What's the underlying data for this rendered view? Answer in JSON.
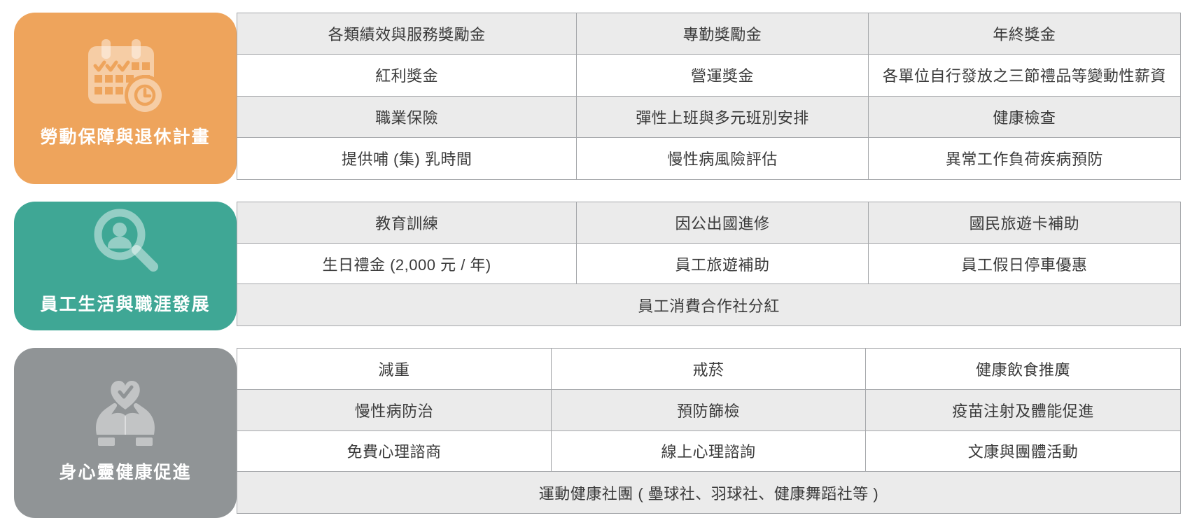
{
  "palette": {
    "orange": "#EEA45C",
    "teal": "#3FA795",
    "gray": "#909496",
    "row_shade": "#EBEBEB",
    "border": "#A5A7AA",
    "cell_text": "#3A3A3A",
    "label_text": "#FFFFFF"
  },
  "sections": [
    {
      "label": "勞動保障與退休計畫",
      "color": "#EEA45C",
      "icon": "calendar-clock-icon",
      "rows": [
        {
          "shaded": true,
          "cells": [
            "各類績效與服務獎勵金",
            "專勤獎勵金",
            "年終獎金"
          ]
        },
        {
          "shaded": false,
          "cells": [
            "紅利獎金",
            "營運獎金",
            "各單位自行發放之三節禮品等變動性薪資"
          ]
        },
        {
          "shaded": true,
          "cells": [
            "職業保險",
            "彈性上班與多元班別安排",
            "健康檢查"
          ]
        },
        {
          "shaded": false,
          "cells": [
            "提供哺 (集) 乳時間",
            "慢性病風險評估",
            "異常工作負荷疾病預防"
          ]
        }
      ]
    },
    {
      "label": "員工生活與職涯發展",
      "color": "#3FA795",
      "icon": "person-search-icon",
      "rows": [
        {
          "shaded": true,
          "cells": [
            "教育訓練",
            "因公出國進修",
            "國民旅遊卡補助"
          ]
        },
        {
          "shaded": false,
          "cells": [
            "生日禮金 (2,000 元 / 年)",
            "員工旅遊補助",
            "員工假日停車優惠"
          ]
        },
        {
          "shaded": true,
          "cells": [
            "員工消費合作社分紅"
          ]
        }
      ]
    },
    {
      "label": "身心靈健康促進",
      "color": "#909496",
      "icon": "hands-heart-icon",
      "rows": [
        {
          "shaded": false,
          "cells": [
            "減重",
            "戒菸",
            "健康飲食推廣"
          ]
        },
        {
          "shaded": true,
          "cells": [
            "慢性病防治",
            "預防篩檢",
            "疫苗注射及體能促進"
          ]
        },
        {
          "shaded": false,
          "cells": [
            "免費心理諮商",
            "線上心理諮詢",
            "文康與團體活動"
          ]
        },
        {
          "shaded": true,
          "cells": [
            "運動健康社團 ( 壘球社、羽球社、健康舞蹈社等 )"
          ]
        }
      ]
    }
  ]
}
